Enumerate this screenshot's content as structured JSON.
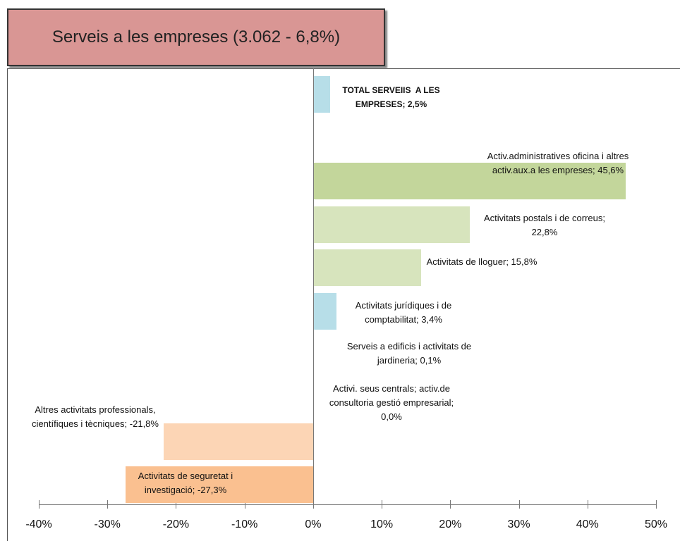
{
  "chart_data": {
    "type": "hbar",
    "title": "Serveis a les empreses (3.062 - 6,8%)",
    "values": [
      2.5,
      null,
      45.6,
      22.8,
      15.8,
      3.4,
      0.1,
      0.0,
      -21.8,
      -27.3
    ],
    "value_labels": [
      "TOTAL SERVEIIS  A LES EMPRESES; 2,5%",
      null,
      "Activ.administratives oficina i altres activ.aux.a les empreses; 45,6%",
      "Activitats postals i de correus; 22,8%",
      "Activitats de lloguer; 15,8%",
      "Activitats jurídiques i de comptabilitat; 3,4%",
      "Serveis a edificis i activitats de jardineria; 0,1%",
      "Activi. seus centrals; activ.de consultoria gestió empresarial; 0,0%",
      "Altres activitats professionals, científiques i tècniques; -21,8%",
      "Activitats de seguretat i investigació; -27,3%"
    ],
    "colors": [
      "#b7dee8",
      null,
      "#c3d69b",
      "#d7e4bd",
      "#d7e4bd",
      "#b7dee8",
      "#b7dee8",
      "#b7dee8",
      "#fcd5b5",
      "#fac090"
    ],
    "xlim": [
      -40,
      50
    ],
    "xticks": [
      {
        "value": -40,
        "label": "-40%"
      },
      {
        "value": -30,
        "label": "-30%"
      },
      {
        "value": -20,
        "label": "-20%"
      },
      {
        "value": -10,
        "label": "-10%"
      },
      {
        "value": 0,
        "label": "0%"
      },
      {
        "value": 10,
        "label": "10%"
      },
      {
        "value": 20,
        "label": "20%"
      },
      {
        "value": 30,
        "label": "30%"
      },
      {
        "value": 40,
        "label": "40%"
      },
      {
        "value": 50,
        "label": "50%"
      }
    ]
  }
}
